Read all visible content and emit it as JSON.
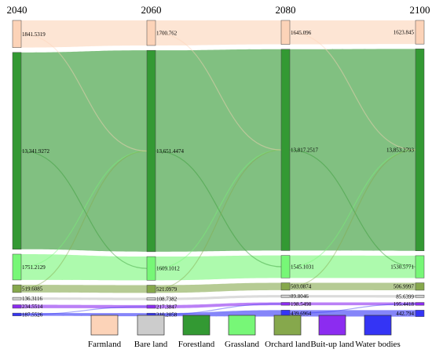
{
  "chart_data": {
    "type": "sankey",
    "title": "",
    "years": [
      "2040",
      "2060",
      "2080",
      "2100"
    ],
    "categories": [
      "Farmland",
      "Bare land",
      "Forestland",
      "Grassland",
      "Orchard land",
      "Buit-up land",
      "Water bodies"
    ],
    "colors": {
      "Farmland": "#fcd3b8",
      "Bare land": "#cccccc",
      "Forestland": "#339933",
      "Grassland": "#77f777",
      "Orchard land": "#86a84c",
      "Buit-up land": "#8c2cf0",
      "Water bodies": "#3434f5"
    },
    "stages": [
      {
        "year": "2040",
        "values": [
          "1841.5319",
          "136.3116",
          "13,341.9272",
          "1751.2129",
          "519.6085",
          "234.5514",
          "187.5526"
        ]
      },
      {
        "year": "2060",
        "values": [
          "1700.762",
          "108.7382",
          "13,651.4474",
          "1609.1012",
          "521.0979",
          "217.3847",
          "210.2058"
        ]
      },
      {
        "year": "2080",
        "values": [
          "1645.096",
          "89.8046",
          "13,817.2517",
          "1545.1031",
          "503.0874",
          "198.5498",
          "439.6964"
        ]
      },
      {
        "year": "2100",
        "values": [
          "1623.845",
          "85.6399",
          "13,853.2793",
          "1530.5771",
          "506.9997",
          "195.4418",
          "442.794"
        ]
      }
    ],
    "legend_position": "bottom"
  }
}
